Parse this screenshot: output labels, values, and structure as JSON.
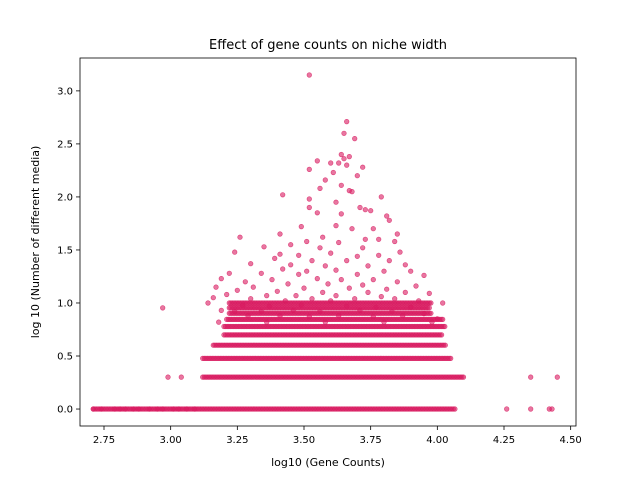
{
  "chart_data": {
    "type": "scatter",
    "title": "Effect of gene counts on niche width",
    "xlabel": "log10 (Gene Counts)",
    "ylabel": "log 10 (Number of different media)",
    "xlim": [
      2.66,
      4.52
    ],
    "ylim": [
      -0.16,
      3.31
    ],
    "x_ticks": [
      2.75,
      3.0,
      3.25,
      3.5,
      3.75,
      4.0,
      4.25,
      4.5
    ],
    "x_tick_labels": [
      "2.75",
      "3.00",
      "3.25",
      "3.50",
      "3.75",
      "4.00",
      "4.25",
      "4.50"
    ],
    "y_ticks": [
      0.0,
      0.5,
      1.0,
      1.5,
      2.0,
      2.5,
      3.0
    ],
    "y_tick_labels": [
      "0.0",
      "0.5",
      "1.0",
      "1.5",
      "2.0",
      "2.5",
      "3.0"
    ],
    "grid": false,
    "marker_color": "#d81b60",
    "marker_alpha": 0.6,
    "levels": [
      0.0,
      0.301,
      0.477,
      0.602,
      0.699,
      0.778,
      0.845,
      0.903,
      0.954,
      1.0
    ],
    "band_ranges": [
      {
        "y": 0.0,
        "x": [
          2.71,
          4.07
        ]
      },
      {
        "y": 0.301,
        "x": [
          3.12,
          4.1
        ]
      },
      {
        "y": 0.477,
        "x": [
          3.12,
          4.05
        ]
      },
      {
        "y": 0.602,
        "x": [
          3.16,
          4.03
        ]
      },
      {
        "y": 0.699,
        "x": [
          3.2,
          4.02
        ]
      },
      {
        "y": 0.778,
        "x": [
          3.2,
          4.03
        ]
      },
      {
        "y": 0.845,
        "x": [
          3.21,
          4.02
        ]
      },
      {
        "y": 0.903,
        "x": [
          3.22,
          3.98
        ]
      },
      {
        "y": 0.954,
        "x": [
          3.22,
          3.97
        ]
      },
      {
        "y": 1.0,
        "x": [
          3.22,
          3.98
        ]
      }
    ],
    "points": [
      {
        "x": 2.71,
        "y": 0.0
      },
      {
        "x": 2.74,
        "y": 0.0
      },
      {
        "x": 2.79,
        "y": 0.0
      },
      {
        "x": 2.81,
        "y": 0.0
      },
      {
        "x": 2.83,
        "y": 0.0
      },
      {
        "x": 2.86,
        "y": 0.0
      },
      {
        "x": 2.88,
        "y": 0.0
      },
      {
        "x": 2.92,
        "y": 0.0
      },
      {
        "x": 2.95,
        "y": 0.0
      },
      {
        "x": 2.97,
        "y": 0.0
      },
      {
        "x": 3.01,
        "y": 0.0
      },
      {
        "x": 3.03,
        "y": 0.0
      },
      {
        "x": 3.06,
        "y": 0.0
      },
      {
        "x": 3.09,
        "y": 0.0
      },
      {
        "x": 4.26,
        "y": 0.0
      },
      {
        "x": 4.35,
        "y": 0.0
      },
      {
        "x": 4.42,
        "y": 0.0
      },
      {
        "x": 4.43,
        "y": 0.0
      },
      {
        "x": 2.97,
        "y": 0.954
      },
      {
        "x": 2.99,
        "y": 0.301
      },
      {
        "x": 3.04,
        "y": 0.301
      },
      {
        "x": 4.35,
        "y": 0.301
      },
      {
        "x": 4.45,
        "y": 0.301
      },
      {
        "x": 3.52,
        "y": 3.15
      },
      {
        "x": 3.66,
        "y": 2.71
      },
      {
        "x": 3.65,
        "y": 2.6
      },
      {
        "x": 3.69,
        "y": 2.55
      },
      {
        "x": 3.64,
        "y": 2.4
      },
      {
        "x": 3.65,
        "y": 2.36
      },
      {
        "x": 3.67,
        "y": 2.38
      },
      {
        "x": 3.63,
        "y": 2.32
      },
      {
        "x": 3.66,
        "y": 2.3
      },
      {
        "x": 3.55,
        "y": 2.34
      },
      {
        "x": 3.6,
        "y": 2.32
      },
      {
        "x": 3.72,
        "y": 2.28
      },
      {
        "x": 3.52,
        "y": 2.26
      },
      {
        "x": 3.61,
        "y": 2.23
      },
      {
        "x": 3.7,
        "y": 2.2
      },
      {
        "x": 3.58,
        "y": 2.16
      },
      {
        "x": 3.64,
        "y": 2.11
      },
      {
        "x": 3.56,
        "y": 2.08
      },
      {
        "x": 3.67,
        "y": 2.06
      },
      {
        "x": 3.42,
        "y": 2.02
      },
      {
        "x": 3.52,
        "y": 1.98
      },
      {
        "x": 3.62,
        "y": 1.95
      },
      {
        "x": 3.68,
        "y": 2.05
      },
      {
        "x": 3.79,
        "y": 2.0
      },
      {
        "x": 3.71,
        "y": 1.9
      },
      {
        "x": 3.73,
        "y": 1.88
      },
      {
        "x": 3.75,
        "y": 1.87
      },
      {
        "x": 3.52,
        "y": 1.9
      },
      {
        "x": 3.55,
        "y": 1.85
      },
      {
        "x": 3.64,
        "y": 1.84
      },
      {
        "x": 3.81,
        "y": 1.82
      },
      {
        "x": 3.82,
        "y": 1.78
      },
      {
        "x": 3.62,
        "y": 1.73
      },
      {
        "x": 3.49,
        "y": 1.72
      },
      {
        "x": 3.68,
        "y": 1.7
      },
      {
        "x": 3.76,
        "y": 1.7
      },
      {
        "x": 3.85,
        "y": 1.65
      },
      {
        "x": 3.26,
        "y": 1.62
      },
      {
        "x": 3.41,
        "y": 1.65
      },
      {
        "x": 3.57,
        "y": 1.62
      },
      {
        "x": 3.73,
        "y": 1.6
      },
      {
        "x": 3.78,
        "y": 1.6
      },
      {
        "x": 3.84,
        "y": 1.58
      },
      {
        "x": 3.51,
        "y": 1.58
      },
      {
        "x": 3.63,
        "y": 1.57
      },
      {
        "x": 3.45,
        "y": 1.55
      },
      {
        "x": 3.35,
        "y": 1.53
      },
      {
        "x": 3.56,
        "y": 1.52
      },
      {
        "x": 3.72,
        "y": 1.52
      },
      {
        "x": 3.86,
        "y": 1.48
      },
      {
        "x": 3.24,
        "y": 1.48
      },
      {
        "x": 3.41,
        "y": 1.46
      },
      {
        "x": 3.48,
        "y": 1.45
      },
      {
        "x": 3.6,
        "y": 1.47
      },
      {
        "x": 3.7,
        "y": 1.44
      },
      {
        "x": 3.78,
        "y": 1.45
      },
      {
        "x": 3.39,
        "y": 1.42
      },
      {
        "x": 3.53,
        "y": 1.4
      },
      {
        "x": 3.66,
        "y": 1.4
      },
      {
        "x": 3.82,
        "y": 1.4
      },
      {
        "x": 3.88,
        "y": 1.36
      },
      {
        "x": 3.3,
        "y": 1.37
      },
      {
        "x": 3.45,
        "y": 1.36
      },
      {
        "x": 3.58,
        "y": 1.35
      },
      {
        "x": 3.74,
        "y": 1.35
      },
      {
        "x": 3.42,
        "y": 1.32
      },
      {
        "x": 3.51,
        "y": 1.3
      },
      {
        "x": 3.62,
        "y": 1.31
      },
      {
        "x": 3.8,
        "y": 1.3
      },
      {
        "x": 3.9,
        "y": 1.3
      },
      {
        "x": 3.22,
        "y": 1.28
      },
      {
        "x": 3.34,
        "y": 1.28
      },
      {
        "x": 3.48,
        "y": 1.27
      },
      {
        "x": 3.7,
        "y": 1.27
      },
      {
        "x": 3.95,
        "y": 1.26
      },
      {
        "x": 3.19,
        "y": 1.23
      },
      {
        "x": 3.38,
        "y": 1.22
      },
      {
        "x": 3.55,
        "y": 1.23
      },
      {
        "x": 3.64,
        "y": 1.22
      },
      {
        "x": 3.76,
        "y": 1.22
      },
      {
        "x": 3.85,
        "y": 1.2
      },
      {
        "x": 3.28,
        "y": 1.2
      },
      {
        "x": 3.44,
        "y": 1.18
      },
      {
        "x": 3.59,
        "y": 1.18
      },
      {
        "x": 3.72,
        "y": 1.17
      },
      {
        "x": 3.92,
        "y": 1.16
      },
      {
        "x": 3.17,
        "y": 1.15
      },
      {
        "x": 3.31,
        "y": 1.15
      },
      {
        "x": 3.5,
        "y": 1.14
      },
      {
        "x": 3.67,
        "y": 1.14
      },
      {
        "x": 3.81,
        "y": 1.13
      },
      {
        "x": 3.25,
        "y": 1.12
      },
      {
        "x": 3.4,
        "y": 1.11
      },
      {
        "x": 3.57,
        "y": 1.1
      },
      {
        "x": 3.74,
        "y": 1.1
      },
      {
        "x": 3.88,
        "y": 1.1
      },
      {
        "x": 3.97,
        "y": 1.09
      },
      {
        "x": 3.21,
        "y": 1.08
      },
      {
        "x": 3.36,
        "y": 1.07
      },
      {
        "x": 3.47,
        "y": 1.07
      },
      {
        "x": 3.62,
        "y": 1.07
      },
      {
        "x": 3.79,
        "y": 1.06
      },
      {
        "x": 3.14,
        "y": 1.0
      },
      {
        "x": 3.16,
        "y": 1.05
      },
      {
        "x": 3.3,
        "y": 1.04
      },
      {
        "x": 3.53,
        "y": 1.04
      },
      {
        "x": 3.69,
        "y": 1.04
      },
      {
        "x": 3.84,
        "y": 1.04
      },
      {
        "x": 3.43,
        "y": 1.02
      },
      {
        "x": 3.6,
        "y": 1.02
      },
      {
        "x": 3.93,
        "y": 1.02
      },
      {
        "x": 4.02,
        "y": 1.0
      },
      {
        "x": 3.19,
        "y": 0.93
      },
      {
        "x": 3.27,
        "y": 0.98
      },
      {
        "x": 3.37,
        "y": 0.97
      },
      {
        "x": 3.49,
        "y": 0.98
      },
      {
        "x": 3.66,
        "y": 0.97
      },
      {
        "x": 3.77,
        "y": 0.96
      },
      {
        "x": 3.9,
        "y": 0.96
      },
      {
        "x": 3.24,
        "y": 0.92
      },
      {
        "x": 3.34,
        "y": 0.92
      },
      {
        "x": 3.46,
        "y": 0.93
      },
      {
        "x": 3.56,
        "y": 0.92
      },
      {
        "x": 3.71,
        "y": 0.93
      },
      {
        "x": 3.83,
        "y": 0.92
      },
      {
        "x": 3.95,
        "y": 0.9
      },
      {
        "x": 3.29,
        "y": 0.88
      },
      {
        "x": 3.41,
        "y": 0.88
      },
      {
        "x": 3.52,
        "y": 0.87
      },
      {
        "x": 3.63,
        "y": 0.88
      },
      {
        "x": 3.76,
        "y": 0.87
      },
      {
        "x": 3.87,
        "y": 0.88
      },
      {
        "x": 4.0,
        "y": 0.85
      },
      {
        "x": 3.18,
        "y": 0.82
      },
      {
        "x": 3.36,
        "y": 0.82
      },
      {
        "x": 3.58,
        "y": 0.82
      },
      {
        "x": 3.8,
        "y": 0.82
      },
      {
        "x": 3.98,
        "y": 0.82
      }
    ]
  }
}
